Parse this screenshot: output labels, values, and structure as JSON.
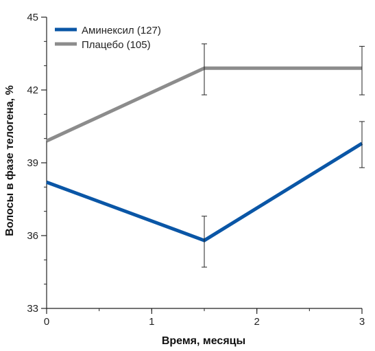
{
  "chart_data": {
    "type": "line",
    "xlabel": "Время, месяцы",
    "ylabel": "Волосы в фазе телогена, %",
    "xlim": [
      0,
      3
    ],
    "ylim": [
      33,
      45
    ],
    "xticks": [
      0,
      1,
      2,
      3
    ],
    "yticks": [
      33,
      36,
      39,
      42,
      45
    ],
    "xtick_labels": [
      "0",
      "1",
      "2",
      "3"
    ],
    "ytick_labels": [
      "33",
      "36",
      "39",
      "42",
      "45"
    ],
    "minor_xtick_step": 0.5,
    "minor_ytick_step": 1,
    "grid": false,
    "legend_position": "top-left",
    "series": [
      {
        "name": "Аминексил (127)",
        "color": "#0a56a6",
        "points": [
          {
            "x": 0,
            "y": 38.2
          },
          {
            "x": 1.5,
            "y": 35.8,
            "err_low": 34.7,
            "err_high": 36.8
          },
          {
            "x": 3,
            "y": 39.8,
            "err_low": 38.8,
            "err_high": 40.7
          }
        ]
      },
      {
        "name": "Плацебо (105)",
        "color": "#8c8c8c",
        "points": [
          {
            "x": 0,
            "y": 39.9
          },
          {
            "x": 1.5,
            "y": 42.9,
            "err_low": 41.8,
            "err_high": 43.9
          },
          {
            "x": 3,
            "y": 42.9,
            "err_low": 41.8,
            "err_high": 43.8
          }
        ]
      }
    ]
  }
}
